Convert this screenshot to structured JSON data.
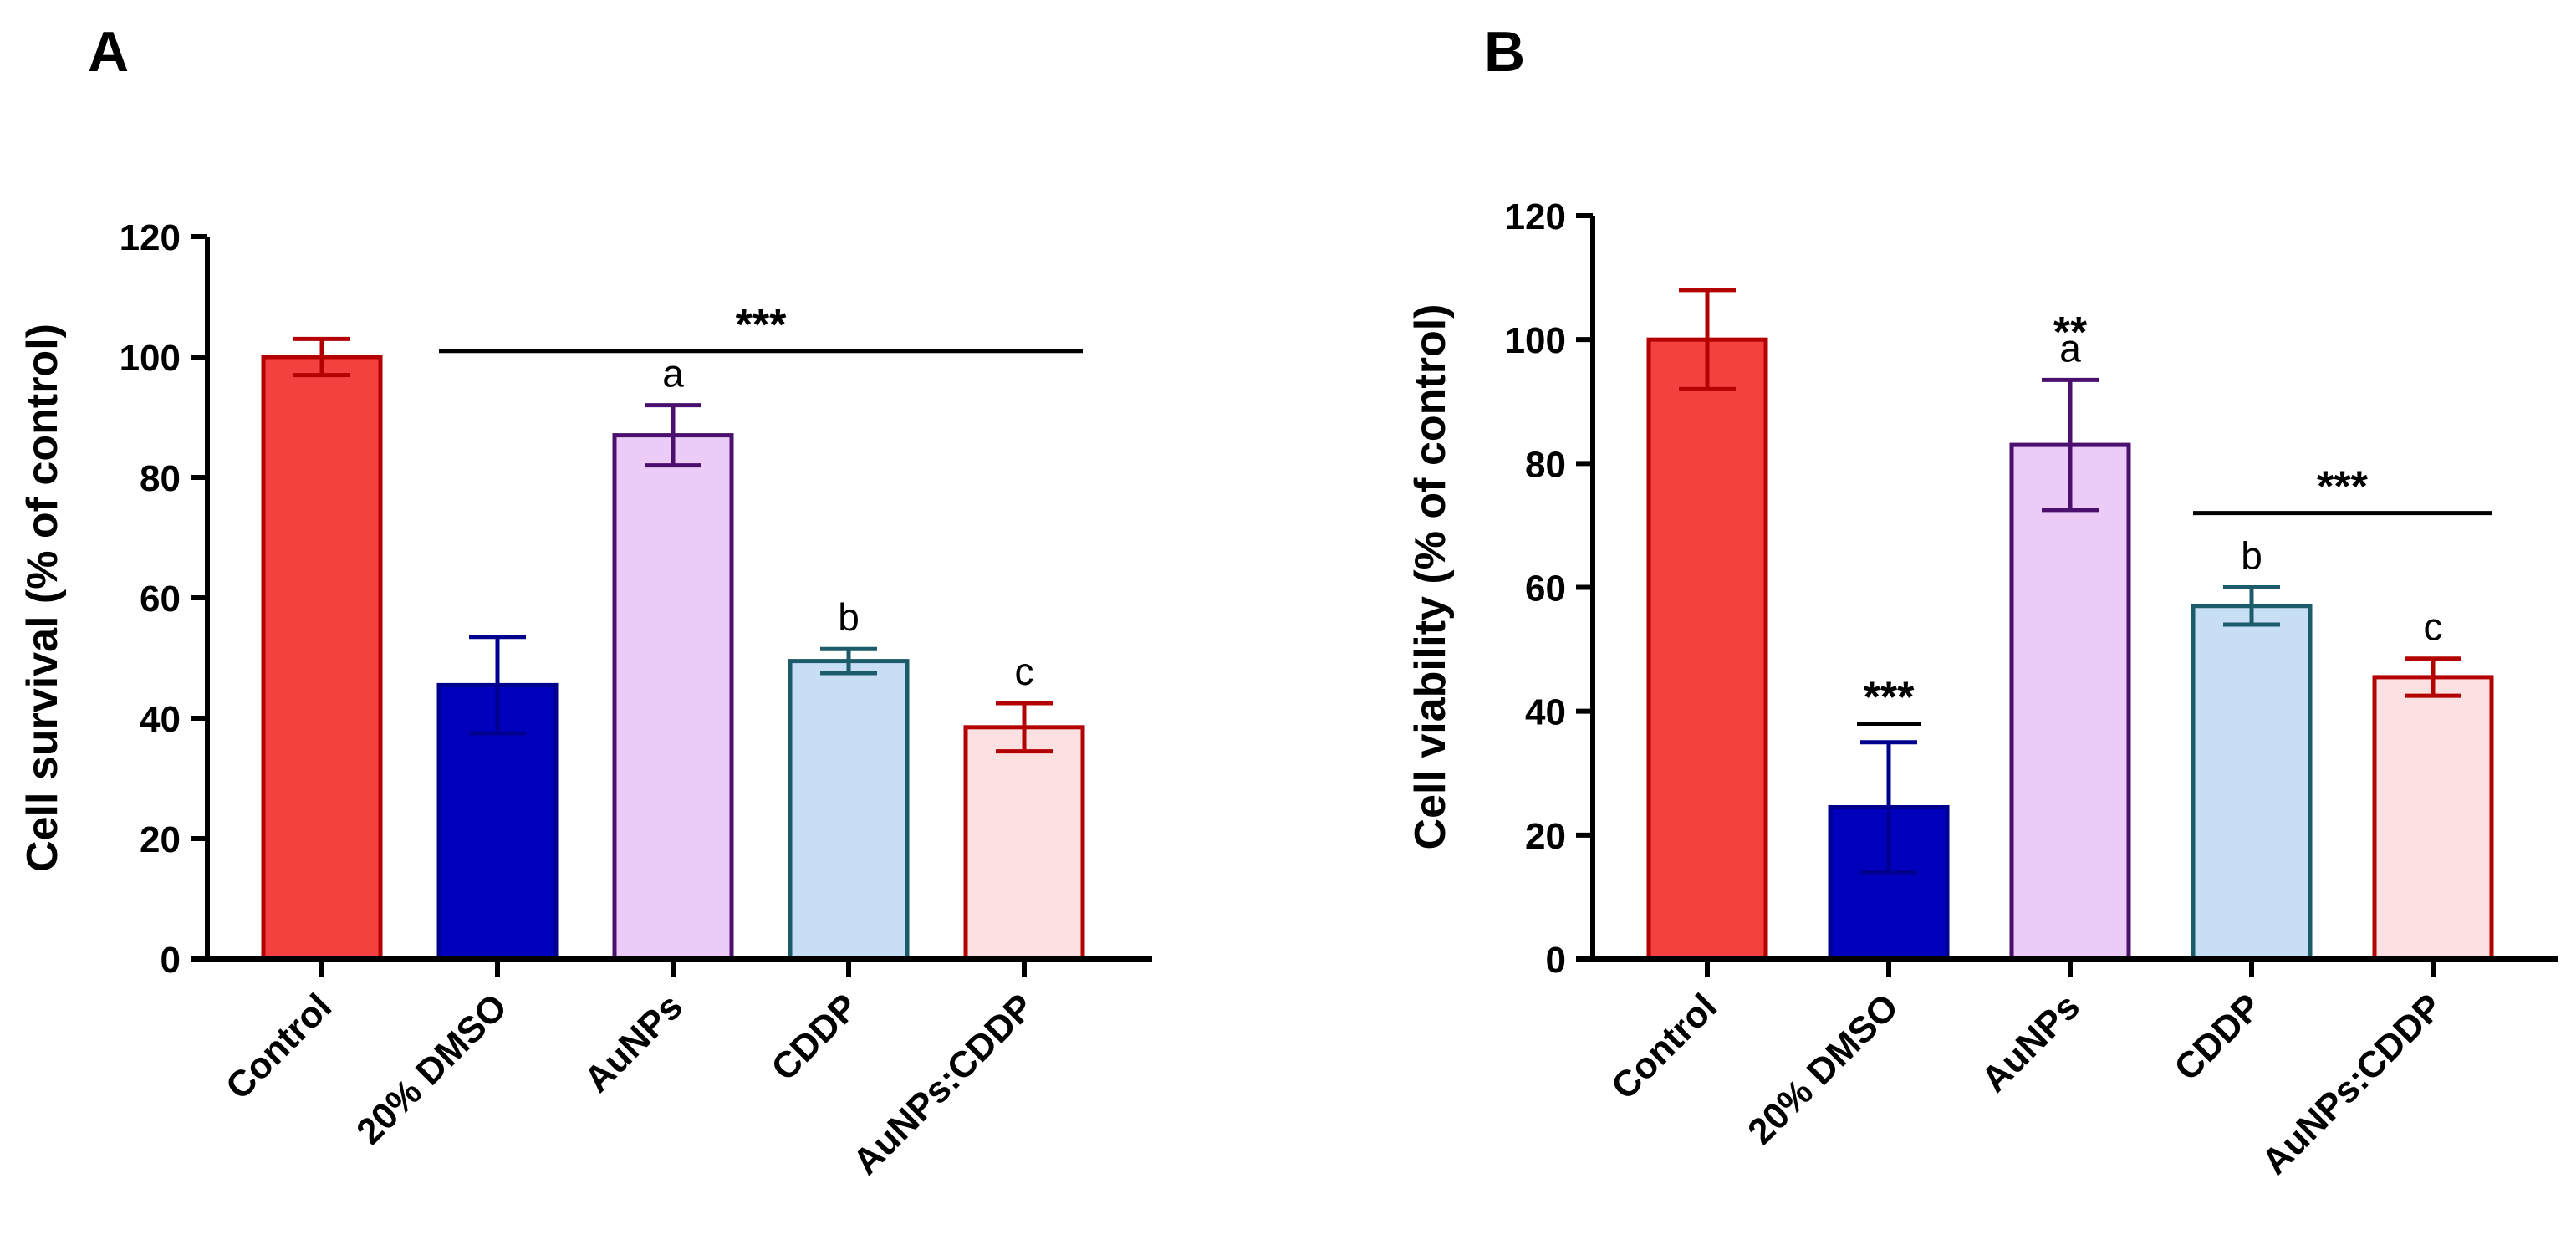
{
  "figure": {
    "panels": [
      {
        "letter": "A",
        "ylabel": "Cell survival (% of control)"
      },
      {
        "letter": "B",
        "ylabel": "Cell viability (% of control)"
      }
    ]
  },
  "chart_data": [
    {
      "type": "bar",
      "panel": "A",
      "title": "",
      "xlabel": "",
      "ylabel": "Cell survival (% of control)",
      "ylim": [
        0,
        120
      ],
      "yticks": [
        0,
        20,
        40,
        60,
        80,
        100,
        120
      ],
      "grid": false,
      "categories": [
        "Control",
        "20% DMSO",
        "AuNPs",
        "CDDP",
        "AuNPs:CDDP"
      ],
      "values": [
        100,
        45.5,
        87,
        49.5,
        38.5
      ],
      "errors": [
        3,
        8,
        5,
        2,
        4
      ],
      "fill_colors": [
        "#f54040",
        "#0000bd",
        "#eccbf6",
        "#c8def5",
        "#fde0e1"
      ],
      "edge_colors": [
        "#b30000",
        "#00008f",
        "#4b0f6e",
        "#1c5b69",
        "#b30000"
      ],
      "letters": [
        "",
        "",
        "a",
        "b",
        "c"
      ],
      "annotations": [
        {
          "text": "***",
          "type": "bracket",
          "from": 1,
          "to": 4,
          "y": 101
        }
      ]
    },
    {
      "type": "bar",
      "panel": "B",
      "title": "",
      "xlabel": "",
      "ylabel": "Cell viability (% of control)",
      "ylim": [
        0,
        120
      ],
      "yticks": [
        0,
        20,
        40,
        60,
        80,
        100,
        120
      ],
      "grid": false,
      "categories": [
        "Control",
        "20% DMSO",
        "AuNPs",
        "CDDP",
        "AuNPs:CDDP"
      ],
      "values": [
        100,
        24.5,
        83,
        57,
        45.5
      ],
      "errors": [
        8,
        10.5,
        10.5,
        3,
        3
      ],
      "fill_colors": [
        "#f54040",
        "#0000bd",
        "#eccbf6",
        "#c8def5",
        "#fde0e1"
      ],
      "edge_colors": [
        "#b30000",
        "#00008f",
        "#4b0f6e",
        "#1c5b69",
        "#b30000"
      ],
      "letters": [
        "",
        "",
        "a",
        "b",
        "c"
      ],
      "annotations": [
        {
          "text": "***",
          "type": "bar",
          "index": 1,
          "y": 38
        },
        {
          "text": "**",
          "type": "label",
          "index": 2,
          "y": 101
        },
        {
          "text": "***",
          "type": "bracket",
          "from": 3,
          "to": 4,
          "y": 72
        }
      ]
    }
  ]
}
